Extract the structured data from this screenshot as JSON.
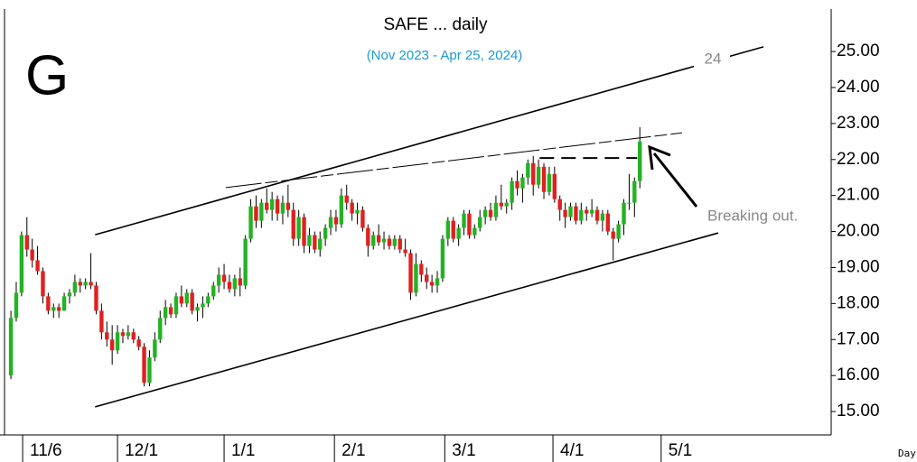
{
  "chart_data": {
    "type": "candlestick",
    "title": "SAFE ... daily",
    "subtitle": "(Nov 2023 - Apr 25, 2024)",
    "logo": "G",
    "x_axis_label": "Day",
    "annotations": [
      "24",
      "Breaking out."
    ],
    "up_color": "#22b322",
    "down_color": "#e02020",
    "open": [
      16.0,
      17.6,
      18.3,
      19.9,
      19.5,
      19.2,
      18.9,
      18.2,
      17.8,
      17.9,
      17.8,
      18.2,
      18.3,
      18.6,
      18.5,
      18.6,
      18.5,
      17.8,
      17.2,
      17.0,
      16.7,
      17.2,
      17.1,
      17.2,
      17.0,
      16.8,
      15.8,
      16.5,
      17.0,
      17.6,
      17.9,
      17.7,
      18.2,
      18.0,
      18.3,
      17.8,
      17.9,
      18.0,
      18.2,
      18.5,
      18.8,
      18.6,
      18.4,
      18.7,
      18.5,
      19.8,
      20.7,
      20.3,
      20.8,
      20.6,
      20.9,
      20.5,
      20.8,
      20.6,
      19.8,
      20.4,
      19.6,
      19.9,
      19.5,
      19.8,
      20.1,
      20.4,
      20.2,
      21.0,
      20.8,
      20.5,
      20.6,
      20.1,
      19.6,
      19.9,
      19.7,
      19.8,
      19.6,
      19.8,
      19.5,
      19.4,
      18.3,
      19.1,
      18.8,
      18.6,
      18.5,
      18.7,
      19.8,
      20.3,
      19.8,
      20.1,
      20.5,
      19.9,
      20.1,
      20.4,
      20.6,
      20.4,
      20.8,
      20.7,
      20.8,
      21.4,
      21.2,
      21.5,
      21.9,
      21.3,
      21.8,
      21.1,
      21.6,
      20.9,
      20.6,
      20.4,
      20.7,
      20.3,
      20.6,
      20.5,
      20.6,
      20.3,
      20.5,
      20.0,
      19.8,
      20.2,
      20.8,
      20.8,
      21.4
    ],
    "high": [
      17.8,
      18.6,
      20.0,
      20.4,
      19.8,
      19.6,
      19.0,
      18.3,
      18.0,
      18.0,
      18.3,
      18.4,
      18.8,
      18.7,
      18.7,
      19.4,
      18.6,
      18.0,
      17.5,
      17.4,
      17.4,
      17.3,
      17.4,
      17.3,
      17.1,
      16.9,
      16.7,
      17.2,
      17.8,
      18.1,
      18.0,
      18.3,
      18.5,
      18.4,
      18.4,
      18.0,
      18.2,
      18.3,
      18.6,
      19.0,
      19.1,
      18.8,
      18.8,
      19.0,
      19.9,
      20.9,
      21.0,
      20.9,
      21.2,
      21.1,
      21.0,
      21.0,
      21.3,
      20.8,
      20.6,
      20.5,
      20.1,
      20.0,
      20.0,
      20.2,
      20.6,
      20.6,
      21.2,
      21.3,
      20.9,
      20.8,
      20.7,
      20.2,
      20.0,
      20.2,
      20.0,
      19.9,
      19.9,
      19.9,
      19.8,
      19.5,
      19.4,
      19.2,
      19.0,
      18.8,
      18.9,
      19.9,
      20.4,
      20.4,
      20.2,
      20.6,
      20.6,
      20.2,
      20.6,
      20.7,
      20.8,
      21.0,
      21.3,
      20.9,
      21.5,
      21.7,
      21.6,
      22.0,
      22.1,
      22.0,
      21.9,
      21.8,
      21.8,
      21.0,
      20.8,
      20.8,
      20.8,
      20.8,
      20.7,
      20.9,
      20.7,
      20.6,
      20.6,
      20.1,
      20.3,
      20.9,
      21.6,
      21.5,
      22.9
    ],
    "low": [
      15.9,
      17.5,
      18.2,
      19.3,
      19.0,
      18.8,
      18.0,
      17.7,
      17.6,
      17.6,
      17.8,
      18.0,
      18.2,
      18.3,
      18.4,
      18.4,
      17.7,
      17.0,
      16.8,
      16.3,
      16.6,
      16.9,
      17.0,
      16.9,
      16.7,
      15.7,
      15.7,
      16.4,
      16.9,
      17.4,
      17.6,
      17.6,
      17.9,
      17.9,
      17.7,
      17.5,
      17.6,
      17.9,
      18.1,
      18.3,
      18.4,
      18.3,
      18.2,
      18.2,
      18.4,
      19.7,
      20.1,
      20.1,
      20.5,
      20.3,
      20.3,
      20.2,
      20.4,
      19.6,
      19.6,
      19.4,
      19.4,
      19.4,
      19.3,
      19.6,
      19.9,
      20.0,
      20.1,
      20.6,
      20.3,
      20.2,
      20.0,
      19.3,
      19.5,
      19.6,
      19.5,
      19.5,
      19.5,
      19.4,
      19.3,
      18.1,
      18.2,
      18.6,
      18.4,
      18.3,
      18.3,
      18.6,
      19.6,
      19.7,
      19.6,
      19.9,
      19.8,
      19.8,
      20.0,
      20.2,
      20.3,
      20.3,
      20.6,
      20.5,
      20.6,
      21.0,
      20.8,
      21.3,
      21.0,
      21.2,
      20.9,
      21.0,
      20.8,
      20.3,
      20.1,
      20.3,
      20.2,
      20.2,
      20.3,
      20.4,
      20.2,
      20.0,
      19.9,
      19.2,
      19.7,
      19.9,
      20.6,
      20.4,
      21.2
    ],
    "close": [
      17.6,
      18.3,
      19.9,
      19.5,
      19.2,
      18.9,
      18.2,
      17.8,
      17.9,
      17.8,
      18.2,
      18.3,
      18.6,
      18.5,
      18.6,
      18.5,
      17.8,
      17.2,
      17.0,
      16.7,
      17.2,
      17.1,
      17.2,
      17.0,
      16.8,
      15.8,
      16.5,
      17.0,
      17.6,
      17.9,
      17.7,
      18.2,
      18.0,
      18.3,
      17.8,
      17.9,
      18.0,
      18.2,
      18.5,
      18.8,
      18.6,
      18.4,
      18.7,
      18.5,
      19.8,
      20.7,
      20.3,
      20.8,
      20.6,
      20.9,
      20.5,
      20.8,
      20.6,
      19.8,
      20.4,
      19.6,
      19.9,
      19.5,
      19.8,
      20.1,
      20.4,
      20.2,
      21.0,
      20.8,
      20.5,
      20.6,
      20.1,
      19.6,
      19.9,
      19.7,
      19.8,
      19.6,
      19.8,
      19.5,
      19.4,
      18.3,
      19.1,
      18.8,
      18.6,
      18.5,
      18.7,
      19.8,
      20.3,
      19.8,
      20.1,
      20.5,
      19.9,
      20.1,
      20.4,
      20.6,
      20.4,
      20.8,
      20.7,
      20.8,
      21.4,
      21.2,
      21.5,
      21.9,
      21.3,
      21.8,
      21.1,
      21.6,
      20.9,
      20.6,
      20.4,
      20.7,
      20.3,
      20.6,
      20.5,
      20.6,
      20.3,
      20.5,
      20.0,
      19.8,
      20.2,
      20.8,
      20.8,
      21.4,
      22.5
    ],
    "xlim": [
      -1.2,
      153.9
    ],
    "xticks": [
      {
        "value": 2.2,
        "label": "11/6"
      },
      {
        "value": 20.0,
        "label": "12/1"
      },
      {
        "value": 40.0,
        "label": "1/1"
      },
      {
        "value": 60.7,
        "label": "2/1"
      },
      {
        "value": 81.4,
        "label": "3/1"
      },
      {
        "value": 101.7,
        "label": "4/1"
      },
      {
        "value": 122.0,
        "label": "5/1"
      }
    ],
    "ylim": [
      14.35,
      26.18
    ],
    "yticks": [
      {
        "value": 15,
        "label": "15.00"
      },
      {
        "value": 16,
        "label": "16.00"
      },
      {
        "value": 17,
        "label": "17.00"
      },
      {
        "value": 18,
        "label": "18.00"
      },
      {
        "value": 19,
        "label": "19.00"
      },
      {
        "value": 20,
        "label": "20.00"
      },
      {
        "value": 21,
        "label": "21.00"
      },
      {
        "value": 22,
        "label": "22.00"
      },
      {
        "value": 23,
        "label": "23.00"
      },
      {
        "value": 24,
        "label": "24.00"
      },
      {
        "value": 25,
        "label": "25.00"
      }
    ],
    "lines": [
      {
        "style": "solid",
        "points": [
          [
            15.8,
            19.91
          ],
          [
            141.2,
            25.13
          ]
        ]
      },
      {
        "style": "solid",
        "points": [
          [
            15.8,
            15.13
          ],
          [
            132.7,
            19.96
          ]
        ]
      },
      {
        "style": "dashed-thin",
        "points": [
          [
            40.3,
            21.22
          ],
          [
            125.9,
            22.74
          ]
        ]
      },
      {
        "style": "dashed",
        "points": [
          [
            99.2,
            22.04
          ],
          [
            117.5,
            22.04
          ]
        ]
      }
    ]
  }
}
